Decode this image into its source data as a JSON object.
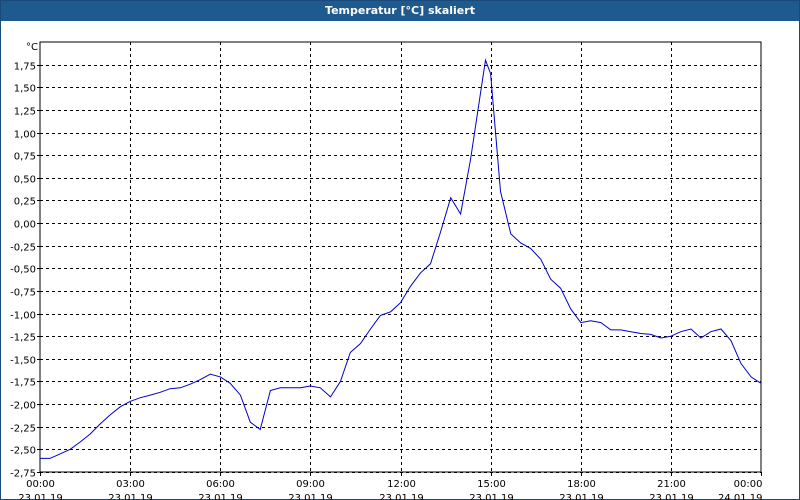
{
  "window": {
    "title": "Temperatur [°C] skaliert"
  },
  "chart_data": {
    "type": "line",
    "title": "Temperatur [°C] skaliert",
    "ylabel": "°C",
    "xlabel": "",
    "ylim": [
      -2.75,
      2.0
    ],
    "xlim_hours": [
      0,
      24
    ],
    "grid": true,
    "line_color": "#0000cc",
    "y_ticks": [
      "1,75",
      "1,50",
      "1,25",
      "1,00",
      "0,75",
      "0,50",
      "0,25",
      "0,00",
      "-0,25",
      "-0,50",
      "-0,75",
      "-1,00",
      "-1,25",
      "-1,50",
      "-1,75",
      "-2,00",
      "-2,25",
      "-2,50",
      "-2,75"
    ],
    "y_tick_values": [
      1.75,
      1.5,
      1.25,
      1.0,
      0.75,
      0.5,
      0.25,
      0.0,
      -0.25,
      -0.5,
      -0.75,
      -1.0,
      -1.25,
      -1.5,
      -1.75,
      -2.0,
      -2.25,
      -2.5,
      -2.75
    ],
    "x_ticks": [
      {
        "time": "00:00",
        "date": "23.01.19",
        "hour": 0
      },
      {
        "time": "03:00",
        "date": "23.01.19",
        "hour": 3
      },
      {
        "time": "06:00",
        "date": "23.01.19",
        "hour": 6
      },
      {
        "time": "09:00",
        "date": "23.01.19",
        "hour": 9
      },
      {
        "time": "12:00",
        "date": "23.01.19",
        "hour": 12
      },
      {
        "time": "15:00",
        "date": "23.01.19",
        "hour": 15
      },
      {
        "time": "18:00",
        "date": "23.01.19",
        "hour": 18
      },
      {
        "time": "21:00",
        "date": "23.01.19",
        "hour": 21
      },
      {
        "time": "00:00",
        "date": "24.01.19",
        "hour": 24
      }
    ],
    "series": [
      {
        "x_hours": [
          0,
          0.33,
          0.67,
          1.0,
          1.33,
          1.67,
          2.0,
          2.33,
          2.67,
          3.0,
          3.33,
          3.67,
          4.0,
          4.33,
          4.67,
          5.0,
          5.33,
          5.67,
          6.0,
          6.33,
          6.67,
          7.0,
          7.33,
          7.67,
          8.0,
          8.33,
          8.67,
          9.0,
          9.33,
          9.67,
          10.0,
          10.33,
          10.67,
          11.0,
          11.33,
          11.67,
          12.0,
          12.33,
          12.67,
          13.0,
          13.33,
          13.67,
          14.0,
          14.33,
          14.67,
          14.83,
          15.0,
          15.33,
          15.67,
          16.0,
          16.33,
          16.67,
          17.0,
          17.33,
          17.67,
          18.0,
          18.33,
          18.67,
          19.0,
          19.33,
          19.67,
          20.0,
          20.33,
          20.67,
          21.0,
          21.33,
          21.67,
          22.0,
          22.33,
          22.67,
          23.0,
          23.33,
          23.67,
          24.0
        ],
        "y": [
          -2.6,
          -2.6,
          -2.55,
          -2.5,
          -2.42,
          -2.33,
          -2.22,
          -2.12,
          -2.03,
          -1.97,
          -1.93,
          -1.9,
          -1.87,
          -1.83,
          -1.82,
          -1.78,
          -1.73,
          -1.67,
          -1.7,
          -1.77,
          -1.9,
          -2.2,
          -2.28,
          -1.85,
          -1.82,
          -1.82,
          -1.82,
          -1.8,
          -1.82,
          -1.92,
          -1.75,
          -1.43,
          -1.33,
          -1.17,
          -1.02,
          -0.98,
          -0.88,
          -0.7,
          -0.55,
          -0.45,
          -0.1,
          0.28,
          0.1,
          0.7,
          1.45,
          1.8,
          1.65,
          0.35,
          -0.12,
          -0.22,
          -0.28,
          -0.4,
          -0.62,
          -0.72,
          -0.95,
          -1.1,
          -1.08,
          -1.1,
          -1.18,
          -1.18,
          -1.2,
          -1.22,
          -1.23,
          -1.27,
          -1.25,
          -1.2,
          -1.17,
          -1.27,
          -1.2,
          -1.17,
          -1.3,
          -1.55,
          -1.7,
          -1.77
        ]
      }
    ]
  }
}
